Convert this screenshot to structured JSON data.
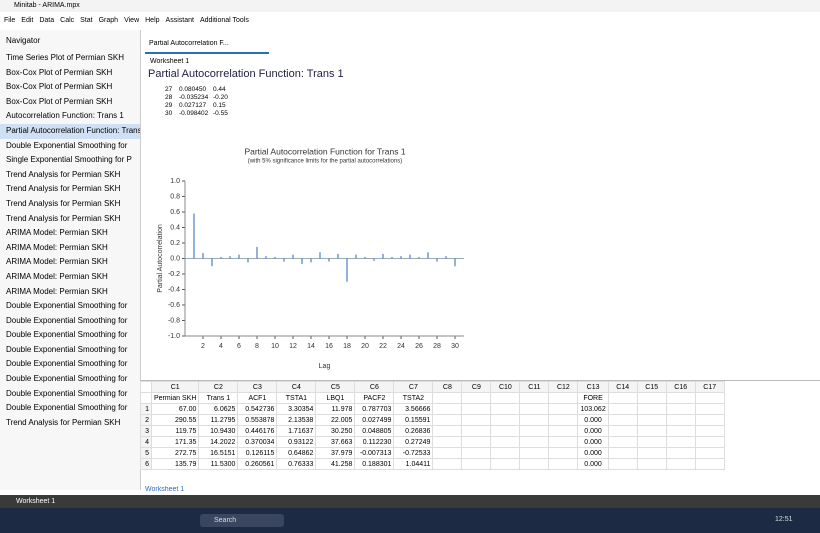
{
  "window_title": "Minitab - ARIMA.mpx",
  "menu": [
    "File",
    "Edit",
    "Data",
    "Calc",
    "Stat",
    "Graph",
    "View",
    "Help",
    "Assistant",
    "Additional Tools"
  ],
  "navigator": {
    "title": "Navigator",
    "items": [
      "Time Series Plot of Permian SKH",
      "Box-Cox Plot of Permian SKH",
      "Box-Cox Plot of Permian SKH",
      "Box-Cox Plot of Permian SKH",
      "Autocorrelation Function: Trans 1",
      "Partial Autocorrelation Function: Trans 1",
      "Double Exponential Smoothing for",
      "Single Exponential Smoothing for P",
      "Trend Analysis for Permian SKH",
      "Trend Analysis for Permian SKH",
      "Trend Analysis for Permian SKH",
      "Trend Analysis for Permian SKH",
      "ARIMA Model: Permian SKH",
      "ARIMA Model: Permian SKH",
      "ARIMA Model: Permian SKH",
      "ARIMA Model: Permian SKH",
      "ARIMA Model: Permian SKH",
      "Double Exponential Smoothing for",
      "Double Exponential Smoothing for",
      "Double Exponential Smoothing for",
      "Double Exponential Smoothing for",
      "Double Exponential Smoothing for",
      "Double Exponential Smoothing for",
      "Double Exponential Smoothing for",
      "Double Exponential Smoothing for",
      "Trend Analysis for Permian SKH"
    ]
  },
  "tab": "Partial Autocorrelation F...",
  "output": {
    "worksheet_label": "Worksheet 1",
    "heading": "Partial Autocorrelation Function: Trans 1",
    "rows": [
      [
        "27",
        "0.080450",
        "0.44"
      ],
      [
        "28",
        "-0.035234",
        "-0.20"
      ],
      [
        "29",
        "0.027127",
        "0.15"
      ],
      [
        "30",
        "-0.098402",
        "-0.55"
      ]
    ]
  },
  "chart_data": {
    "type": "bar",
    "title": "Partial Autocorrelation Function for Trans 1",
    "subtitle": "(with 5% significance limits for the partial autocorrelations)",
    "x_label": "Lag",
    "y_label": "Partial Autocorrelation",
    "color": "#4a7fc0",
    "x": [
      1,
      2,
      3,
      4,
      5,
      6,
      7,
      8,
      9,
      10,
      11,
      12,
      13,
      14,
      15,
      16,
      17,
      18,
      19,
      20,
      21,
      22,
      23,
      24,
      25,
      26,
      27,
      28,
      29,
      30
    ],
    "values": [
      0.58,
      0.07,
      -0.1,
      0.02,
      0.03,
      0.05,
      -0.05,
      0.15,
      0.03,
      0.02,
      -0.04,
      0.05,
      -0.07,
      -0.05,
      0.08,
      -0.04,
      0.06,
      -0.3,
      0.05,
      0.02,
      -0.03,
      0.06,
      0.02,
      0.03,
      0.05,
      0.02,
      0.08,
      -0.04,
      0.03,
      -0.1
    ],
    "xlim": [
      0,
      31
    ],
    "xticks": [
      2,
      4,
      6,
      8,
      10,
      12,
      14,
      16,
      18,
      20,
      22,
      24,
      26,
      28,
      30
    ],
    "ylim": [
      -1,
      1
    ],
    "yticks": [
      {
        "value": 1,
        "label": "1.0"
      },
      {
        "value": 0.8,
        "label": "0.8"
      },
      {
        "value": 0.6,
        "label": "0.6"
      },
      {
        "value": 0.4,
        "label": "0.4"
      },
      {
        "value": 0.2,
        "label": "0.2"
      },
      {
        "value": 0,
        "label": "0.0"
      },
      {
        "value": -0.2,
        "label": "-0.2"
      },
      {
        "value": -0.4,
        "label": "-0.4"
      },
      {
        "value": -0.6,
        "label": "-0.6"
      },
      {
        "value": -0.8,
        "label": "-0.8"
      },
      {
        "value": -1,
        "label": "-1.0"
      }
    ]
  },
  "worksheet": {
    "columns": [
      "C1",
      "C2",
      "C3",
      "C4",
      "C5",
      "C6",
      "C7",
      "C8",
      "C9",
      "C10",
      "C11",
      "C12",
      "C13",
      "C14",
      "C15",
      "C16",
      "C17"
    ],
    "names": [
      "Permian SKH",
      "Trans 1",
      "ACF1",
      "TSTA1",
      "LBQ1",
      "PACF2",
      "TSTA2",
      "",
      "",
      "",
      "",
      "",
      "FORE",
      "",
      "",
      "",
      ""
    ],
    "rows": [
      [
        "67.00",
        "6.0625",
        "0.542736",
        "3.30354",
        "11.978",
        "0.787703",
        "3.56666"
      ],
      [
        "290.55",
        "11.2795",
        "0.553878",
        "2.13538",
        "22.005",
        "0.027499",
        "0.15591"
      ],
      [
        "119.75",
        "10.9430",
        "0.446176",
        "1.71637",
        "30.250",
        "0.048805",
        "0.26836"
      ],
      [
        "171.35",
        "14.2022",
        "0.370034",
        "0.93122",
        "37.663",
        "0.112230",
        "0.27249"
      ],
      [
        "272.75",
        "16.5151",
        "0.126115",
        "0.64862",
        "37.979",
        "-0.007313",
        "-0.72533"
      ],
      [
        "135.79",
        "11.5300",
        "0.260561",
        "0.76333",
        "41.258",
        "0.188301",
        "1.04411"
      ]
    ],
    "fore": [
      "103.062",
      "0.000",
      "0.000",
      "0.000",
      "0.000",
      "0.000"
    ],
    "sheet_tab": "Worksheet 1"
  },
  "status": "Worksheet 1",
  "taskbar": {
    "search": "Search",
    "time": "12:51"
  }
}
